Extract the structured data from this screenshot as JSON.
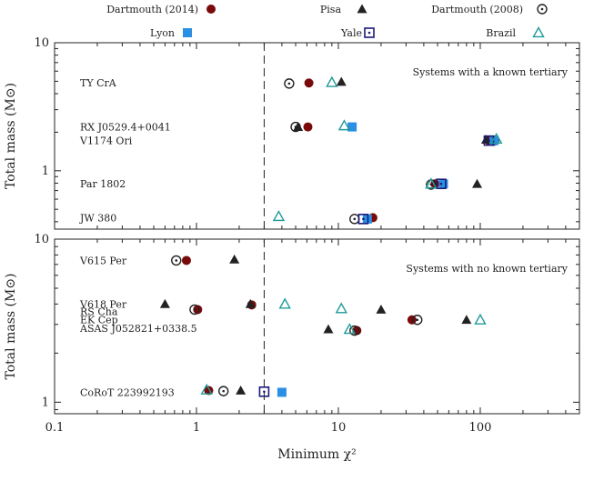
{
  "chart_data": {
    "type": "scatter",
    "xlabel": "Minimum χ²",
    "xscale": "log",
    "xlim": [
      0.1,
      500
    ],
    "x_ticks": [
      "0.1",
      "1",
      "10",
      "100"
    ],
    "x_tick_values": [
      0.1,
      1,
      10,
      100
    ],
    "vline_x": 3,
    "legend": {
      "placement": "top",
      "entries": [
        {
          "name": "Dartmouth (2014)",
          "marker": "filled-circle",
          "color": "#7a0a0a"
        },
        {
          "name": "Pisa",
          "marker": "filled-triangle",
          "color": "#222222"
        },
        {
          "name": "Dartmouth (2008)",
          "marker": "dotted-circle",
          "color": "#222222"
        },
        {
          "name": "Lyon",
          "marker": "filled-square",
          "color": "#2b8fe3"
        },
        {
          "name": "Yale",
          "marker": "dotted-square",
          "color": "#1a1a7a"
        },
        {
          "name": "Brazil",
          "marker": "open-triangle",
          "color": "#1f9a9a"
        }
      ]
    },
    "panels": [
      {
        "annotation": "Systems with a known tertiary",
        "ylabel": "Total mass (M⊙)",
        "yscale": "log",
        "ylim": [
          0.35,
          10
        ],
        "y_ticks": [
          "1",
          "10"
        ],
        "y_tick_values": [
          1,
          10
        ],
        "systems": [
          {
            "name": "TY CrA",
            "label_y": 4.85
          },
          {
            "name": "RX J0529.4+0041",
            "label_y": 2.2
          },
          {
            "name": "V1174 Ori",
            "label_y": 1.72
          },
          {
            "name": "Par 1802",
            "label_y": 0.79
          },
          {
            "name": "JW 380",
            "label_y": 0.43
          }
        ],
        "series": [
          {
            "name": "Dartmouth (2014)",
            "points": [
              [
                6.2,
                4.85
              ],
              [
                6.1,
                2.2
              ],
              [
                115,
                1.72
              ],
              [
                48,
                0.79
              ],
              [
                17.5,
                0.43
              ]
            ]
          },
          {
            "name": "Pisa",
            "points": [
              [
                10.5,
                4.95
              ],
              [
                5.2,
                2.2
              ],
              [
                110,
                1.75
              ],
              [
                95,
                0.79
              ]
            ]
          },
          {
            "name": "Dartmouth (2008)",
            "points": [
              [
                4.5,
                4.8
              ],
              [
                5.0,
                2.2
              ],
              [
                125,
                1.72
              ],
              [
                45,
                0.78
              ],
              [
                13,
                0.42
              ]
            ]
          },
          {
            "name": "Lyon",
            "points": [
              [
                12.5,
                2.2
              ],
              [
                125,
                1.72
              ],
              [
                55,
                0.79
              ],
              [
                16,
                0.42
              ]
            ]
          },
          {
            "name": "Yale",
            "points": [
              [
                115,
                1.72
              ],
              [
                53,
                0.79
              ],
              [
                15,
                0.42
              ]
            ]
          },
          {
            "name": "Brazil",
            "points": [
              [
                9,
                4.9
              ],
              [
                11,
                2.25
              ],
              [
                130,
                1.77
              ],
              [
                45,
                0.79
              ],
              [
                3.8,
                0.44
              ]
            ]
          }
        ]
      },
      {
        "annotation": "Systems with no known tertiary",
        "ylabel": "Total mass (M⊙)",
        "yscale": "log",
        "ylim": [
          0.85,
          10
        ],
        "y_ticks": [
          "1",
          "10"
        ],
        "y_tick_values": [
          1,
          10
        ],
        "systems": [
          {
            "name": "V615 Per",
            "label_y": 7.4
          },
          {
            "name": "V618 Per",
            "label_y": 4.0
          },
          {
            "name": "RS Cha",
            "label_y": 3.6
          },
          {
            "name": "EK Cep",
            "label_y": 3.2
          },
          {
            "name": "ASAS J052821+0338.5",
            "label_y": 2.85
          },
          {
            "name": "CoRoT 223992193",
            "label_y": 1.15
          }
        ],
        "series": [
          {
            "name": "Dartmouth (2014)",
            "points": [
              [
                0.85,
                7.4
              ],
              [
                1.02,
                3.7
              ],
              [
                2.45,
                3.95
              ],
              [
                13.5,
                2.75
              ],
              [
                33,
                3.2
              ],
              [
                1.22,
                1.18
              ]
            ]
          },
          {
            "name": "Pisa",
            "points": [
              [
                1.85,
                7.5
              ],
              [
                0.6,
                4.0
              ],
              [
                2.4,
                4.0
              ],
              [
                8.5,
                2.8
              ],
              [
                20,
                3.7
              ],
              [
                80,
                3.2
              ],
              [
                2.05,
                1.18
              ]
            ]
          },
          {
            "name": "Dartmouth (2008)",
            "points": [
              [
                0.72,
                7.4
              ],
              [
                0.97,
                3.7
              ],
              [
                13,
                2.75
              ],
              [
                36,
                3.2
              ],
              [
                1.55,
                1.17
              ]
            ]
          },
          {
            "name": "Lyon",
            "points": [
              [
                4.0,
                1.15
              ]
            ]
          },
          {
            "name": "Yale",
            "points": [
              [
                3.0,
                1.16
              ]
            ]
          },
          {
            "name": "Brazil",
            "points": [
              [
                4.2,
                4.0
              ],
              [
                10.5,
                3.75
              ],
              [
                12,
                2.8
              ],
              [
                100,
                3.2
              ],
              [
                1.18,
                1.19
              ]
            ]
          }
        ]
      }
    ]
  }
}
